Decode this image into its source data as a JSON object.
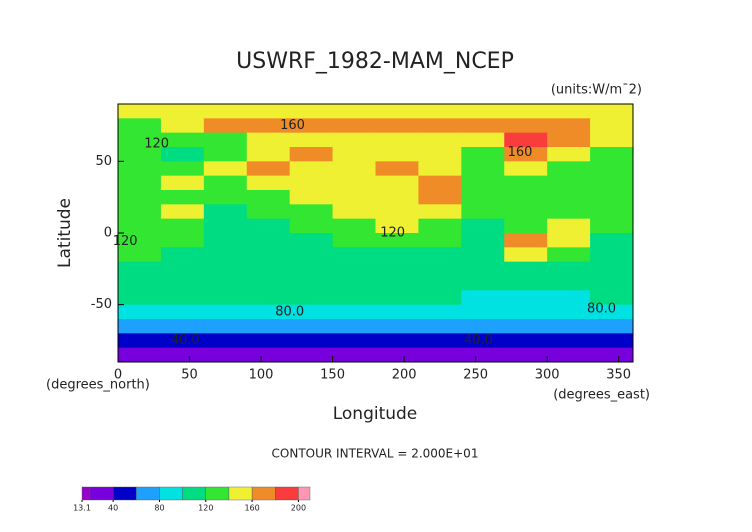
{
  "chart_data": {
    "type": "contour",
    "title": "USWRF_1982-MAM_NCEP",
    "units": "(units:W/m¯2)",
    "xlabel": "Longitude",
    "ylabel": "Latitude",
    "xunit": "(degrees_east)",
    "yunit": "(degrees_north)",
    "note": "CONTOUR INTERVAL = 2.000E+01",
    "xlim": [
      0,
      360
    ],
    "ylim": [
      -90,
      90
    ],
    "xticks": [
      0,
      50,
      100,
      150,
      200,
      250,
      300,
      350
    ],
    "yticks": [
      -50,
      0,
      50
    ],
    "x": [
      15,
      45,
      75,
      105,
      135,
      165,
      195,
      225,
      255,
      285,
      315,
      345
    ],
    "y": [
      85,
      75,
      65,
      55,
      45,
      35,
      25,
      15,
      5,
      -5,
      -15,
      -25,
      -35,
      -45,
      -55,
      -65,
      -75,
      -85
    ],
    "z": [
      [
        150,
        150,
        150,
        150,
        150,
        150,
        150,
        150,
        150,
        150,
        150,
        150
      ],
      [
        135,
        140,
        160,
        165,
        165,
        165,
        165,
        165,
        160,
        170,
        165,
        150
      ],
      [
        125,
        120,
        130,
        140,
        140,
        145,
        150,
        140,
        145,
        185,
        160,
        140
      ],
      [
        120,
        115,
        125,
        150,
        160,
        145,
        150,
        150,
        130,
        160,
        140,
        130
      ],
      [
        120,
        130,
        150,
        165,
        145,
        150,
        160,
        150,
        120,
        140,
        130,
        120
      ],
      [
        125,
        140,
        130,
        140,
        145,
        150,
        150,
        170,
        120,
        130,
        130,
        120
      ],
      [
        120,
        130,
        120,
        135,
        140,
        145,
        150,
        160,
        125,
        120,
        125,
        120
      ],
      [
        120,
        140,
        115,
        120,
        130,
        140,
        145,
        140,
        120,
        125,
        130,
        125
      ],
      [
        125,
        120,
        110,
        110,
        125,
        130,
        140,
        130,
        110,
        120,
        145,
        120
      ],
      [
        130,
        120,
        110,
        105,
        115,
        120,
        125,
        120,
        110,
        165,
        140,
        110
      ],
      [
        120,
        110,
        105,
        105,
        115,
        115,
        115,
        105,
        110,
        140,
        125,
        110
      ],
      [
        110,
        105,
        100,
        105,
        110,
        110,
        105,
        100,
        100,
        110,
        115,
        105
      ],
      [
        105,
        105,
        105,
        105,
        105,
        105,
        105,
        100,
        100,
        100,
        100,
        105
      ],
      [
        100,
        100,
        100,
        100,
        100,
        100,
        100,
        100,
        95,
        95,
        95,
        100
      ],
      [
        85,
        85,
        85,
        85,
        85,
        85,
        85,
        85,
        85,
        80,
        85,
        85
      ],
      [
        65,
        65,
        65,
        65,
        65,
        65,
        65,
        65,
        65,
        65,
        65,
        65
      ],
      [
        50,
        50,
        50,
        50,
        45,
        50,
        50,
        45,
        45,
        50,
        50,
        50
      ],
      [
        30,
        30,
        30,
        30,
        30,
        30,
        30,
        30,
        30,
        30,
        30,
        30
      ]
    ],
    "contour_labels": [
      {
        "text": "160",
        "x": 122,
        "y": 75
      },
      {
        "text": "120",
        "x": 27,
        "y": 62
      },
      {
        "text": "160",
        "x": 281,
        "y": 56
      },
      {
        "text": "120",
        "x": 5,
        "y": -6
      },
      {
        "text": "120",
        "x": 192,
        "y": 0
      },
      {
        "text": "80.0",
        "x": 120,
        "y": -55
      },
      {
        "text": "80.0",
        "x": 338,
        "y": -53
      },
      {
        "text": "40.0",
        "x": 47,
        "y": -75
      },
      {
        "text": "40.0",
        "x": 252,
        "y": -75
      }
    ],
    "colorbar": {
      "lim": [
        13.1,
        210
      ],
      "bounds": [
        13.1,
        20,
        40,
        60,
        80,
        100,
        120,
        140,
        160,
        180,
        200,
        210
      ],
      "colors": [
        "#9600c8",
        "#7800dc",
        "#0000c8",
        "#1ea0ff",
        "#00e1e1",
        "#00dc82",
        "#32e632",
        "#f0f032",
        "#f08c28",
        "#fa3c3c",
        "#ff96b4"
      ],
      "ticks": [
        13.1,
        40,
        80,
        120,
        160,
        200
      ]
    }
  }
}
